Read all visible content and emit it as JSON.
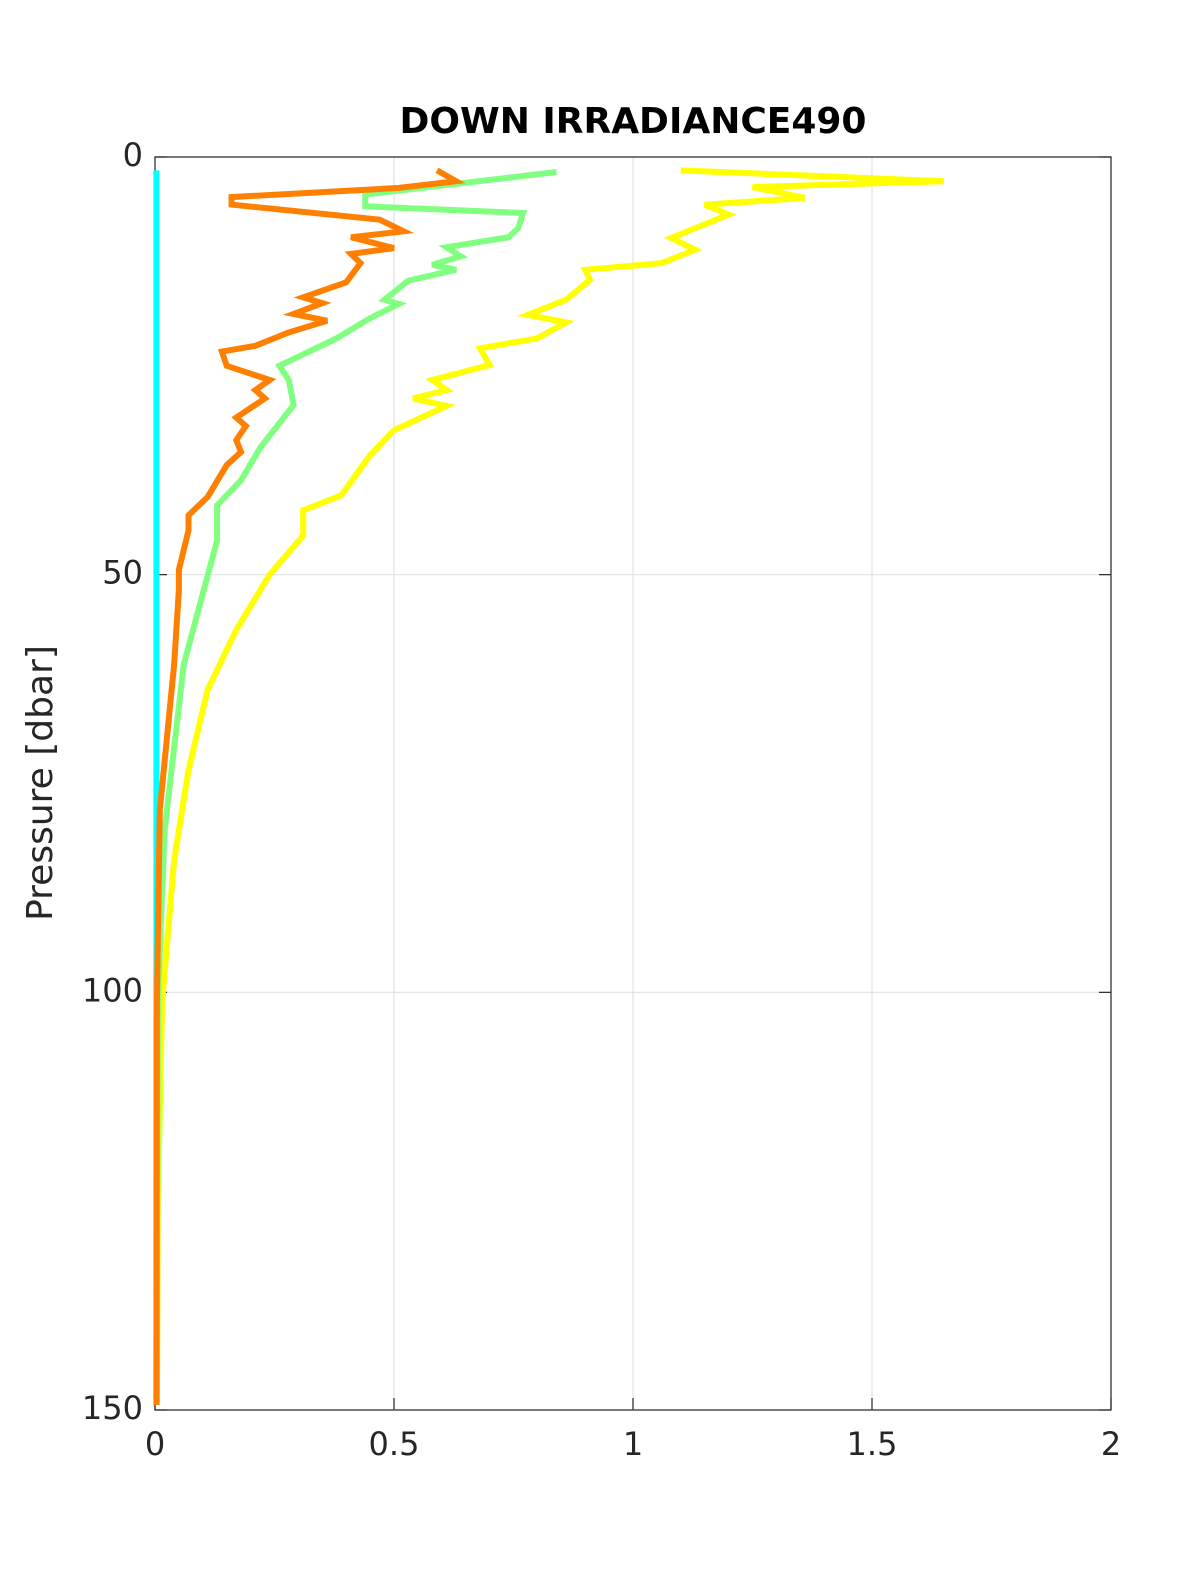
{
  "chart_data": {
    "type": "profile",
    "title": "DOWN IRRADIANCE490",
    "ylabel": "Pressure [dbar]",
    "xlim": [
      0,
      2
    ],
    "xticks": [
      0,
      0.5,
      1,
      1.5,
      2
    ],
    "ylim": [
      0,
      150
    ],
    "yticks": [
      0,
      50,
      100,
      150
    ],
    "y_inverted": true,
    "grid": true,
    "series": [
      {
        "color": "#00ffff",
        "values": [
          0.003,
          0.003,
          0.003,
          0.003,
          0.003
        ],
        "pressure": [
          1.6,
          40,
          80,
          120,
          149.4
        ]
      },
      {
        "color": "#ffff00",
        "values": [
          1.1,
          1.65,
          1.25,
          1.36,
          1.15,
          1.2,
          1.08,
          1.13,
          1.06,
          0.9,
          0.91,
          0.86,
          0.78,
          0.86,
          0.8,
          0.68,
          0.7,
          0.58,
          0.61,
          0.54,
          0.61,
          0.5,
          0.45,
          0.39,
          0.31,
          0.31,
          0.24,
          0.17,
          0.11,
          0.07,
          0.04,
          0.015,
          0.006,
          0.004
        ],
        "pressure": [
          1.6,
          2.9,
          3.6,
          4.9,
          5.7,
          6.9,
          9.7,
          11.1,
          12.7,
          13.5,
          14.7,
          17.1,
          18.9,
          19.8,
          21.7,
          22.9,
          24.9,
          26.7,
          27.9,
          28.9,
          29.8,
          32.7,
          35.7,
          40.5,
          42.3,
          45.3,
          50,
          56.6,
          63.8,
          73.4,
          84.2,
          101,
          125,
          149.4
        ]
      },
      {
        "color": "#80ff80",
        "values": [
          0.84,
          0.44,
          0.44,
          0.77,
          0.76,
          0.74,
          0.61,
          0.64,
          0.58,
          0.63,
          0.53,
          0.48,
          0.51,
          0.45,
          0.38,
          0.26,
          0.28,
          0.29,
          0.22,
          0.18,
          0.13,
          0.13,
          0.06,
          0.02,
          0.006,
          0.004
        ],
        "pressure": [
          1.8,
          4.5,
          5.9,
          6.7,
          8.5,
          9.6,
          10.8,
          11.9,
          12.9,
          13.5,
          14.8,
          17.1,
          17.6,
          19.3,
          21.7,
          25,
          26.7,
          29.7,
          34.8,
          38.7,
          41.7,
          45.9,
          60.8,
          80.6,
          101,
          149.4
        ]
      },
      {
        "color": "#ff8000",
        "values": [
          0.59,
          0.63,
          0.51,
          0.16,
          0.16,
          0.47,
          0.52,
          0.41,
          0.5,
          0.41,
          0.43,
          0.4,
          0.31,
          0.35,
          0.29,
          0.36,
          0.28,
          0.21,
          0.14,
          0.15,
          0.24,
          0.21,
          0.23,
          0.17,
          0.19,
          0.17,
          0.18,
          0.15,
          0.11,
          0.07,
          0.07,
          0.05,
          0.05,
          0.04,
          0.01,
          0.004,
          0.003
        ],
        "pressure": [
          1.6,
          2.9,
          3.7,
          4.8,
          5.7,
          7.5,
          8.9,
          9.6,
          10.9,
          11.6,
          12.7,
          15,
          16.8,
          17.5,
          18.8,
          19.6,
          21,
          22.6,
          23.3,
          25,
          26.7,
          27.9,
          28.9,
          31.2,
          32.2,
          33.9,
          35.3,
          36.9,
          40.7,
          42.9,
          44.7,
          49.4,
          51.8,
          60.8,
          78.2,
          101,
          149.4
        ]
      }
    ]
  }
}
